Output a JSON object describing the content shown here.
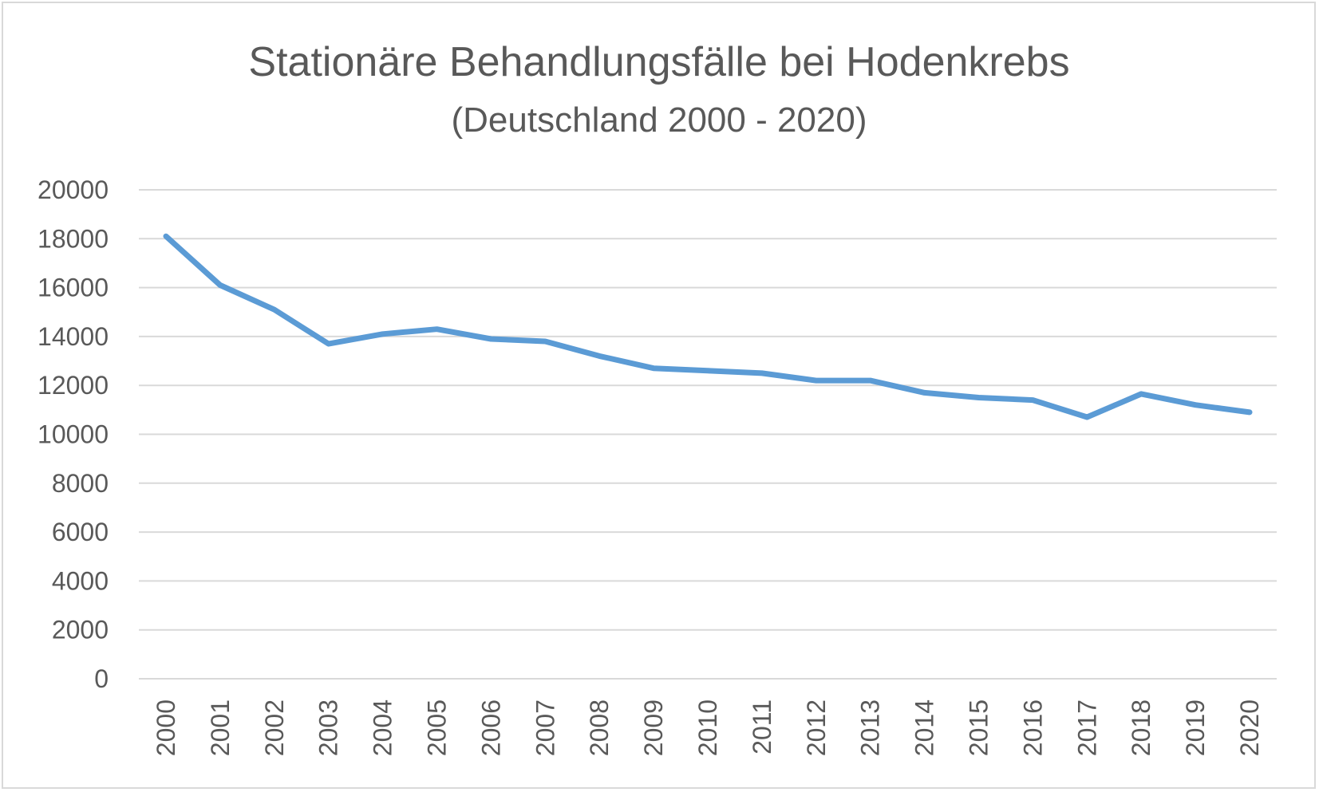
{
  "chart_data": {
    "type": "line",
    "title": "Stationäre Behandlungsfälle bei Hodenkrebs",
    "subtitle": "(Deutschland 2000 - 2020)",
    "xlabel": "",
    "ylabel": "",
    "ylim": [
      0,
      20000
    ],
    "yticks": [
      "0",
      "2000",
      "4000",
      "6000",
      "8000",
      "10000",
      "12000",
      "14000",
      "16000",
      "18000",
      "20000"
    ],
    "grid": true,
    "legend": "none",
    "color": "#5b9bd5",
    "categories": [
      "2000",
      "2001",
      "2002",
      "2003",
      "2004",
      "2005",
      "2006",
      "2007",
      "2008",
      "2009",
      "2010",
      "2011",
      "2012",
      "2013",
      "2014",
      "2015",
      "2016",
      "2017",
      "2018",
      "2019",
      "2020"
    ],
    "series": [
      {
        "values": [
          18100,
          16100,
          15100,
          13700,
          14100,
          14300,
          13900,
          13800,
          13200,
          12700,
          12600,
          12500,
          12200,
          12200,
          11700,
          11500,
          11400,
          10700,
          11650,
          11200,
          10900
        ]
      }
    ]
  }
}
